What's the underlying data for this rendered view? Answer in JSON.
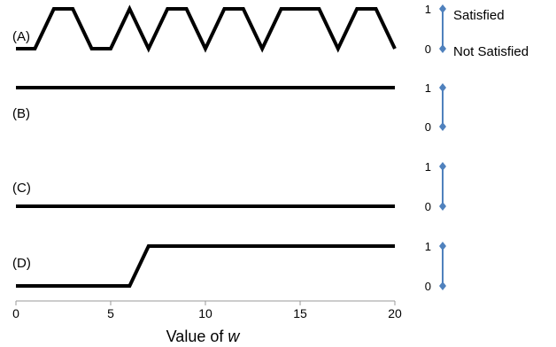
{
  "chart_data": {
    "type": "line",
    "xlabel_prefix": "Value of ",
    "xlabel_var": "w",
    "xlim": [
      0,
      20
    ],
    "x_ticks": [
      "0",
      "5",
      "10",
      "15",
      "20"
    ],
    "ylim": [
      0,
      1
    ],
    "state_labels": {
      "one": "Satisfied",
      "zero": "Not Satisfied"
    },
    "scale_ticks": {
      "one": "1",
      "zero": "0"
    },
    "scale_color": "#4f81bd",
    "line_color": "#000000",
    "series": [
      {
        "name": "(A)",
        "x": [
          0,
          1,
          2,
          3,
          4,
          5,
          6,
          7,
          8,
          9,
          10,
          11,
          12,
          13,
          14,
          15,
          16,
          17,
          18,
          19,
          20
        ],
        "y": [
          0,
          0,
          1,
          1,
          0,
          0,
          1,
          0,
          1,
          1,
          0,
          1,
          1,
          0,
          1,
          1,
          1,
          0,
          1,
          1,
          0
        ]
      },
      {
        "name": "(B)",
        "x": [
          0,
          20
        ],
        "y": [
          1,
          1
        ]
      },
      {
        "name": "(C)",
        "x": [
          0,
          20
        ],
        "y": [
          0,
          0
        ]
      },
      {
        "name": "(D)",
        "x": [
          0,
          6,
          7,
          20
        ],
        "y": [
          0,
          0,
          1,
          1
        ]
      }
    ]
  }
}
